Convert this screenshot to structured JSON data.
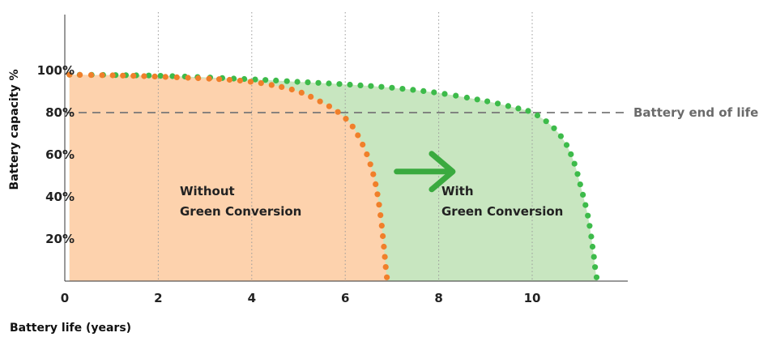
{
  "chart_data": {
    "type": "area",
    "xlabel": "Battery life (years)",
    "ylabel": "Battery capacity %",
    "xlim": [
      0,
      12
    ],
    "ylim": [
      0,
      100
    ],
    "x_ticks": [
      "0",
      "2",
      "4",
      "6",
      "8",
      "10"
    ],
    "x_tick_values": [
      0,
      2,
      4,
      6,
      8,
      10
    ],
    "y_ticks": [
      "20%",
      "40%",
      "60%",
      "80%",
      "100%"
    ],
    "y_tick_values": [
      20,
      40,
      60,
      80,
      100
    ],
    "reference_line": {
      "y": 80,
      "label": "Battery end of life"
    },
    "series": [
      {
        "label": "Without\nGreen Conversion",
        "label_lines": [
          "Without",
          "Green Conversion"
        ],
        "color": "#f07f2a",
        "fill": "#fdd2ad",
        "points": [
          [
            0.1,
            98
          ],
          [
            1,
            97.7
          ],
          [
            2,
            97.1
          ],
          [
            3,
            96.2
          ],
          [
            3.5,
            95.6
          ],
          [
            4,
            94.6
          ],
          [
            4.5,
            92.8
          ],
          [
            5,
            90
          ],
          [
            5.4,
            86
          ],
          [
            5.8,
            81
          ],
          [
            6.1,
            75
          ],
          [
            6.3,
            68
          ],
          [
            6.5,
            58
          ],
          [
            6.65,
            46
          ],
          [
            6.75,
            32
          ],
          [
            6.82,
            18
          ],
          [
            6.87,
            6
          ],
          [
            6.9,
            0
          ]
        ]
      },
      {
        "label": "With\nGreen Conversion",
        "label_lines": [
          "With",
          "Green Conversion"
        ],
        "color": "#3dbb4a",
        "fill": "#c8e6c0",
        "points": [
          [
            0.1,
            98
          ],
          [
            2,
            97.5
          ],
          [
            4,
            95.8
          ],
          [
            5,
            94.6
          ],
          [
            6,
            93.4
          ],
          [
            7,
            91.8
          ],
          [
            8,
            89.3
          ],
          [
            9,
            85.5
          ],
          [
            9.6,
            82.5
          ],
          [
            10,
            80
          ],
          [
            10.4,
            74
          ],
          [
            10.7,
            66
          ],
          [
            10.9,
            56
          ],
          [
            11.05,
            44
          ],
          [
            11.2,
            30
          ],
          [
            11.3,
            15
          ],
          [
            11.36,
            4
          ],
          [
            11.4,
            0
          ]
        ]
      }
    ],
    "arrow": {
      "from": [
        7.1,
        52
      ],
      "to": [
        8.3,
        52
      ],
      "color": "#3aaa3f"
    },
    "grid": "vertical-dotted"
  }
}
